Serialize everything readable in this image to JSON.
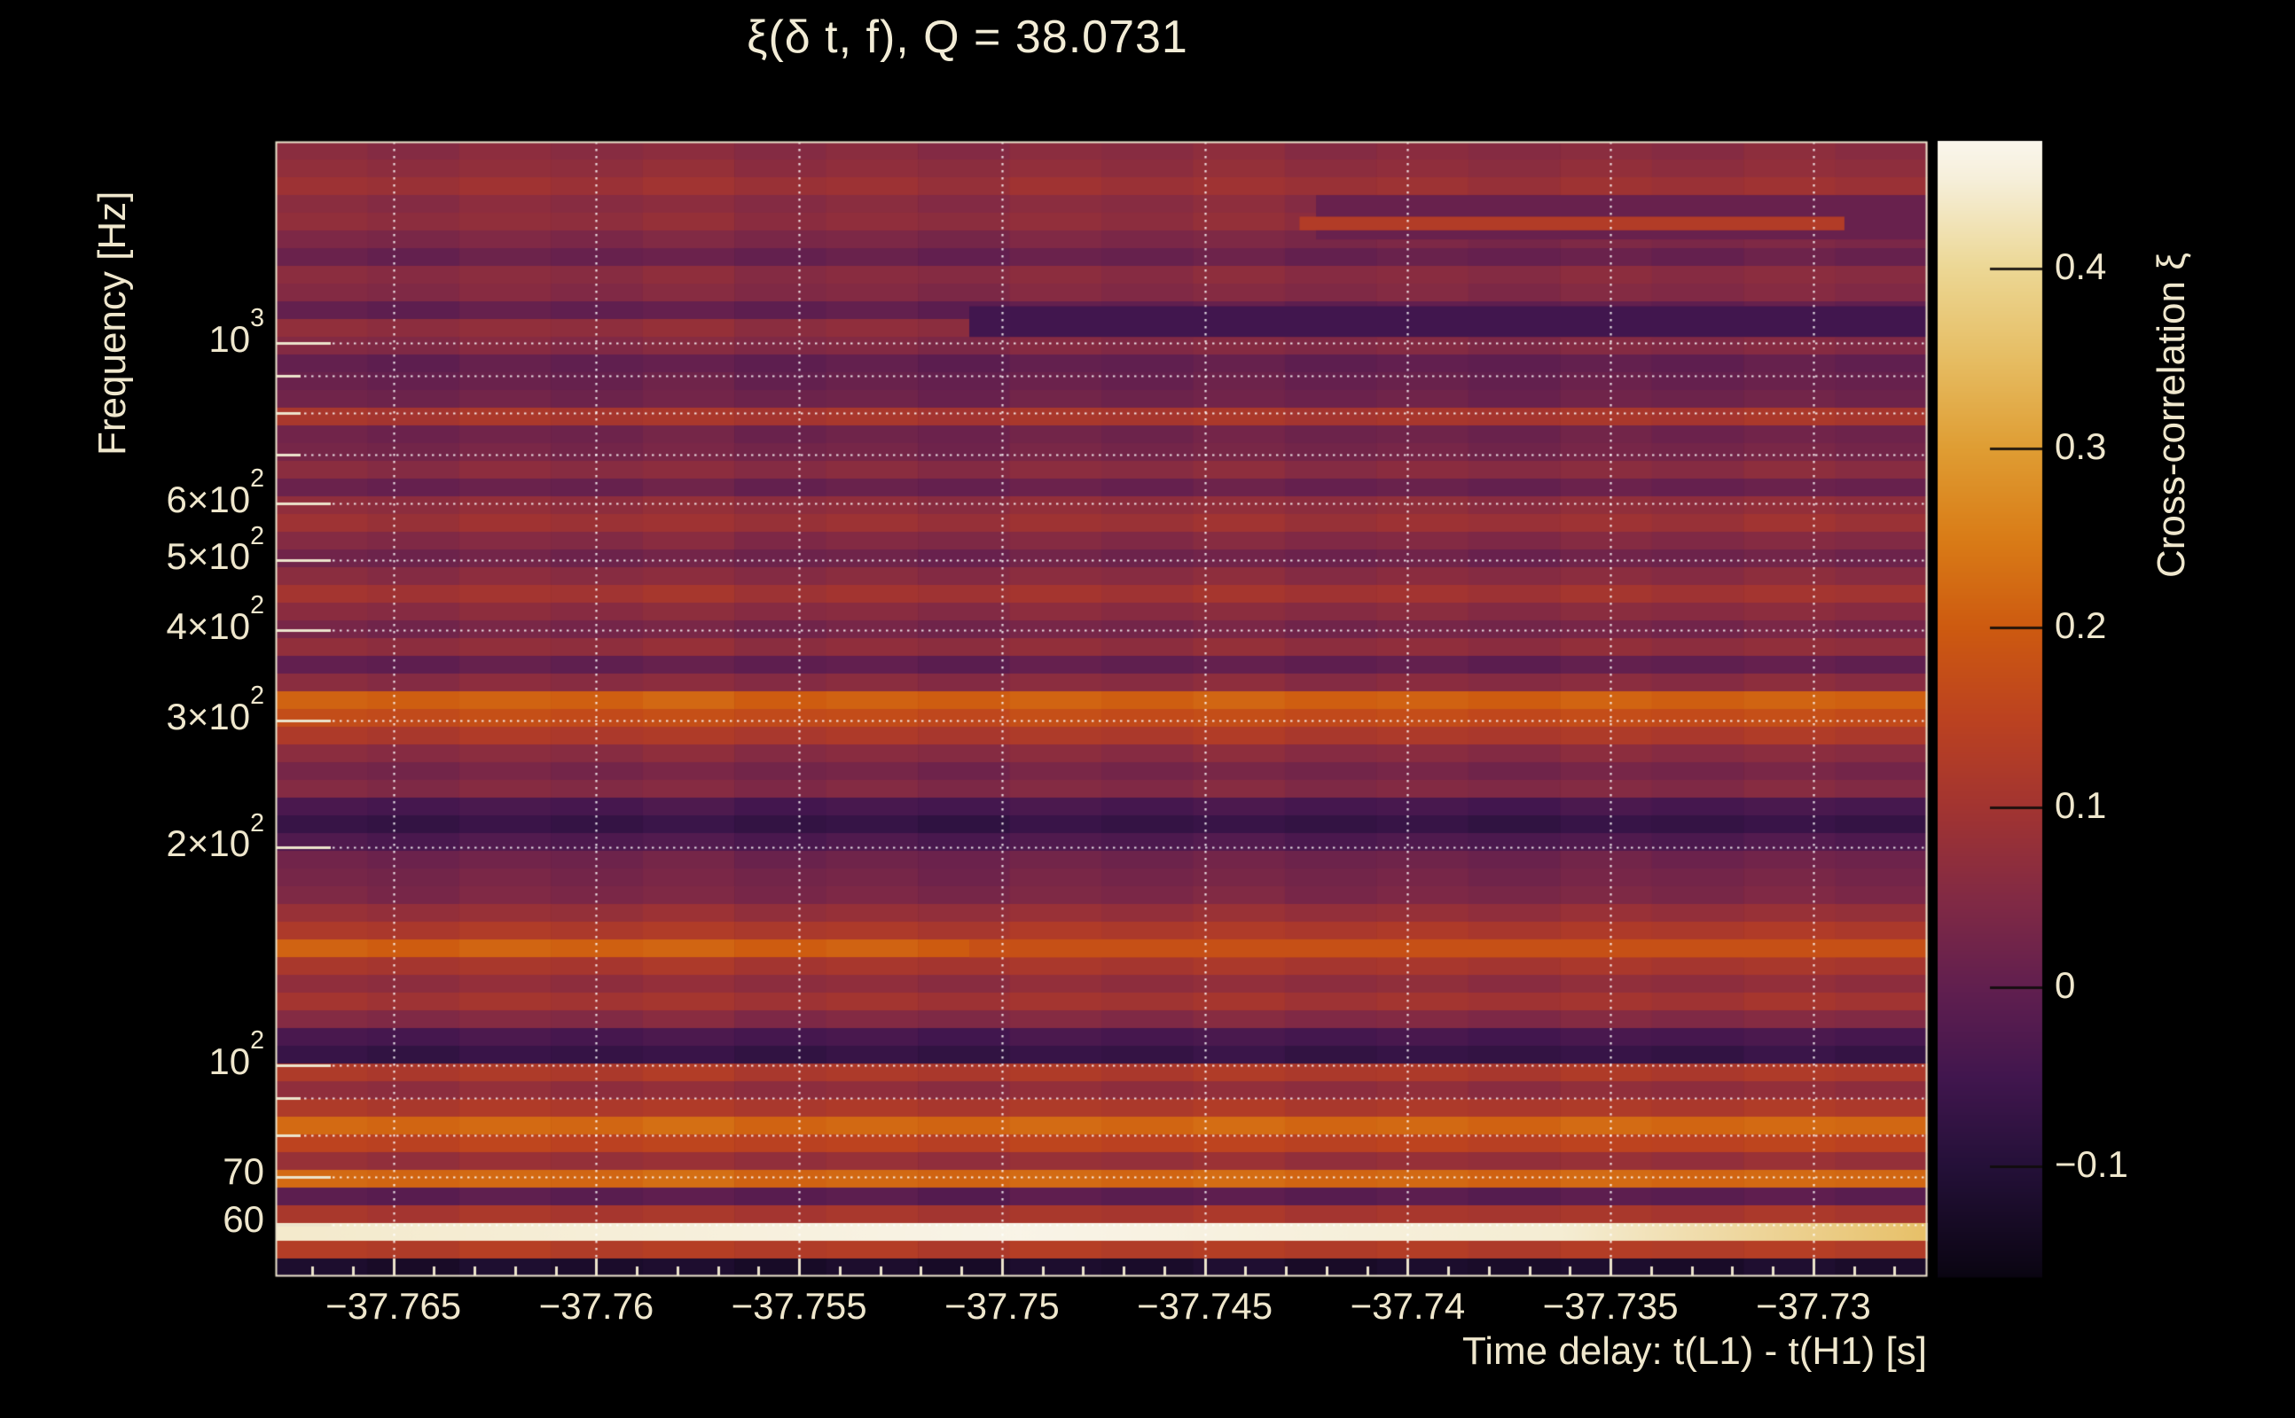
{
  "page": {
    "background_color": "#000000",
    "text_color": "#efe7cd",
    "frame_color": "#ece4cc"
  },
  "chart_data": {
    "type": "heatmap",
    "title": "ξ(δ t, f), Q = 38.0731",
    "q_value": 38.0731,
    "xlabel": "Time delay: t(L1) - t(H1) [s]",
    "ylabel": "Frequency [Hz]",
    "zlabel": "Cross-correlation ξ",
    "x_range": [
      -37.7679,
      -37.7272
    ],
    "y_range_hz": [
      51,
      1899
    ],
    "y_scale": "log",
    "z_range": [
      -0.161,
      0.471
    ],
    "grid": {
      "visible": true,
      "style": "dotted",
      "color": "rgba(255,255,255,0.85)"
    },
    "x_tick_values": [
      -37.765,
      -37.76,
      -37.755,
      -37.75,
      -37.745,
      -37.74,
      -37.735,
      -37.73
    ],
    "x_tick_labels": [
      "−37.765",
      "−37.76",
      "−37.755",
      "−37.75",
      "−37.745",
      "−37.74",
      "−37.735",
      "−37.73"
    ],
    "x_minor_tick_step": 0.001,
    "y_ticks": [
      {
        "label": "10^3",
        "value": 1000,
        "major": true
      },
      {
        "label": "6×10^2",
        "value": 600,
        "major": true
      },
      {
        "label": "5×10^2",
        "value": 500,
        "major": true
      },
      {
        "label": "4×10^2",
        "value": 400,
        "major": true
      },
      {
        "label": "3×10^2",
        "value": 300,
        "major": true
      },
      {
        "label": "2×10^2",
        "value": 200,
        "major": true
      },
      {
        "label": "10^2",
        "value": 100,
        "major": true
      },
      {
        "label": "70",
        "value": 70,
        "major": true
      },
      {
        "label": "60",
        "value": 60,
        "major": true
      }
    ],
    "y_gridline_values": [
      60,
      70,
      80,
      90,
      100,
      200,
      300,
      400,
      500,
      600,
      700,
      800,
      900,
      1000
    ],
    "colorbar": {
      "tick_values": [
        0.4,
        0.3,
        0.2,
        0.1,
        0,
        -0.1
      ],
      "tick_labels": [
        "0.4",
        "0.3",
        "0.2",
        "0.1",
        "0",
        "−0.1"
      ]
    },
    "colormap_stops": [
      [
        -0.161,
        "#0a0512"
      ],
      [
        -0.1,
        "#241038"
      ],
      [
        -0.05,
        "#41164e"
      ],
      [
        0.0,
        "#611f4f"
      ],
      [
        0.05,
        "#822a44"
      ],
      [
        0.1,
        "#a23431"
      ],
      [
        0.15,
        "#bc4220"
      ],
      [
        0.2,
        "#cd5a10"
      ],
      [
        0.25,
        "#d97c17"
      ],
      [
        0.3,
        "#df9d33"
      ],
      [
        0.35,
        "#e6bd63"
      ],
      [
        0.4,
        "#ecd794"
      ],
      [
        0.45,
        "#f6efda"
      ],
      [
        0.471,
        "#faf6ec"
      ]
    ],
    "rows_order": "high-freq-to-low-freq, equal log-width bands",
    "rows_xi": [
      0.06,
      0.07,
      0.09,
      0.06,
      0.07,
      0.04,
      0.01,
      0.06,
      0.05,
      0.0,
      0.07,
      0.05,
      0.0,
      0.01,
      0.02,
      0.11,
      0.02,
      0.03,
      0.06,
      0.01,
      0.07,
      0.09,
      0.05,
      0.02,
      0.06,
      0.1,
      0.06,
      0.03,
      0.07,
      0.0,
      0.06,
      0.21,
      0.17,
      0.12,
      0.06,
      0.03,
      0.05,
      -0.04,
      -0.07,
      -0.03,
      0.02,
      0.03,
      0.04,
      0.08,
      0.12,
      0.21,
      0.11,
      0.07,
      0.1,
      0.05,
      -0.04,
      -0.07,
      0.12,
      0.07,
      0.12,
      0.22,
      0.15,
      0.08,
      0.22,
      -0.01,
      0.11,
      0.46,
      0.13,
      -0.12
    ],
    "columns_dxi": [
      0.003,
      -0.005,
      0.006,
      -0.002,
      0.008,
      -0.006,
      0.002,
      -0.008,
      0.005,
      -0.003,
      0.007,
      -0.005,
      0.002,
      -0.007,
      0.004,
      -0.004,
      0.006,
      -0.002
    ],
    "patches": [
      {
        "yfrac": [
          0.047,
          0.086
        ],
        "xfrac": [
          0.63,
          1.0
        ],
        "xi": 0.01
      },
      {
        "yfrac": [
          0.145,
          0.172
        ],
        "xfrac": [
          0.42,
          1.0
        ],
        "xi": -0.05
      },
      {
        "yfrac": [
          0.066,
          0.078
        ],
        "xfrac": [
          0.62,
          0.95
        ],
        "xi": 0.13
      },
      {
        "yfrac": [
          0.703,
          0.719
        ],
        "xfrac": [
          0.42,
          1.0
        ],
        "xi": 0.18
      }
    ],
    "row_gradients": [
      {
        "yfrac": [
          0.953125,
          0.96875
        ],
        "stops": [
          [
            0,
            0.44
          ],
          [
            0.45,
            0.465
          ],
          [
            0.78,
            0.445
          ],
          [
            1.0,
            0.355
          ]
        ],
        "note": "bright 60 Hz power-line band, fades to gold at right edge"
      }
    ]
  }
}
